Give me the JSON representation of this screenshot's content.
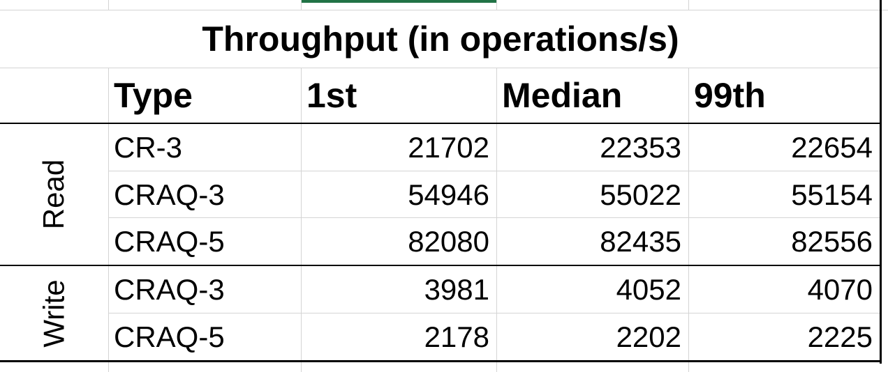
{
  "table": {
    "title": "Throughput (in operations/s)",
    "headers": {
      "type": "Type",
      "first": "1st",
      "median": "Median",
      "p99": "99th"
    },
    "groups": [
      {
        "label": "Read",
        "rows": [
          {
            "type": "CR-3",
            "first": "21702",
            "median": "22353",
            "p99": "22654"
          },
          {
            "type": "CRAQ-3",
            "first": "54946",
            "median": "55022",
            "p99": "55154"
          },
          {
            "type": "CRAQ-5",
            "first": "82080",
            "median": "82435",
            "p99": "82556"
          }
        ]
      },
      {
        "label": "Write",
        "rows": [
          {
            "type": "CRAQ-3",
            "first": "3981",
            "median": "4052",
            "p99": "4070"
          },
          {
            "type": "CRAQ-5",
            "first": "2178",
            "median": "2202",
            "p99": "2225"
          }
        ]
      }
    ]
  },
  "colors": {
    "selection_accent": "#217346",
    "gridline": "#d4d4d4",
    "border": "#000000"
  }
}
